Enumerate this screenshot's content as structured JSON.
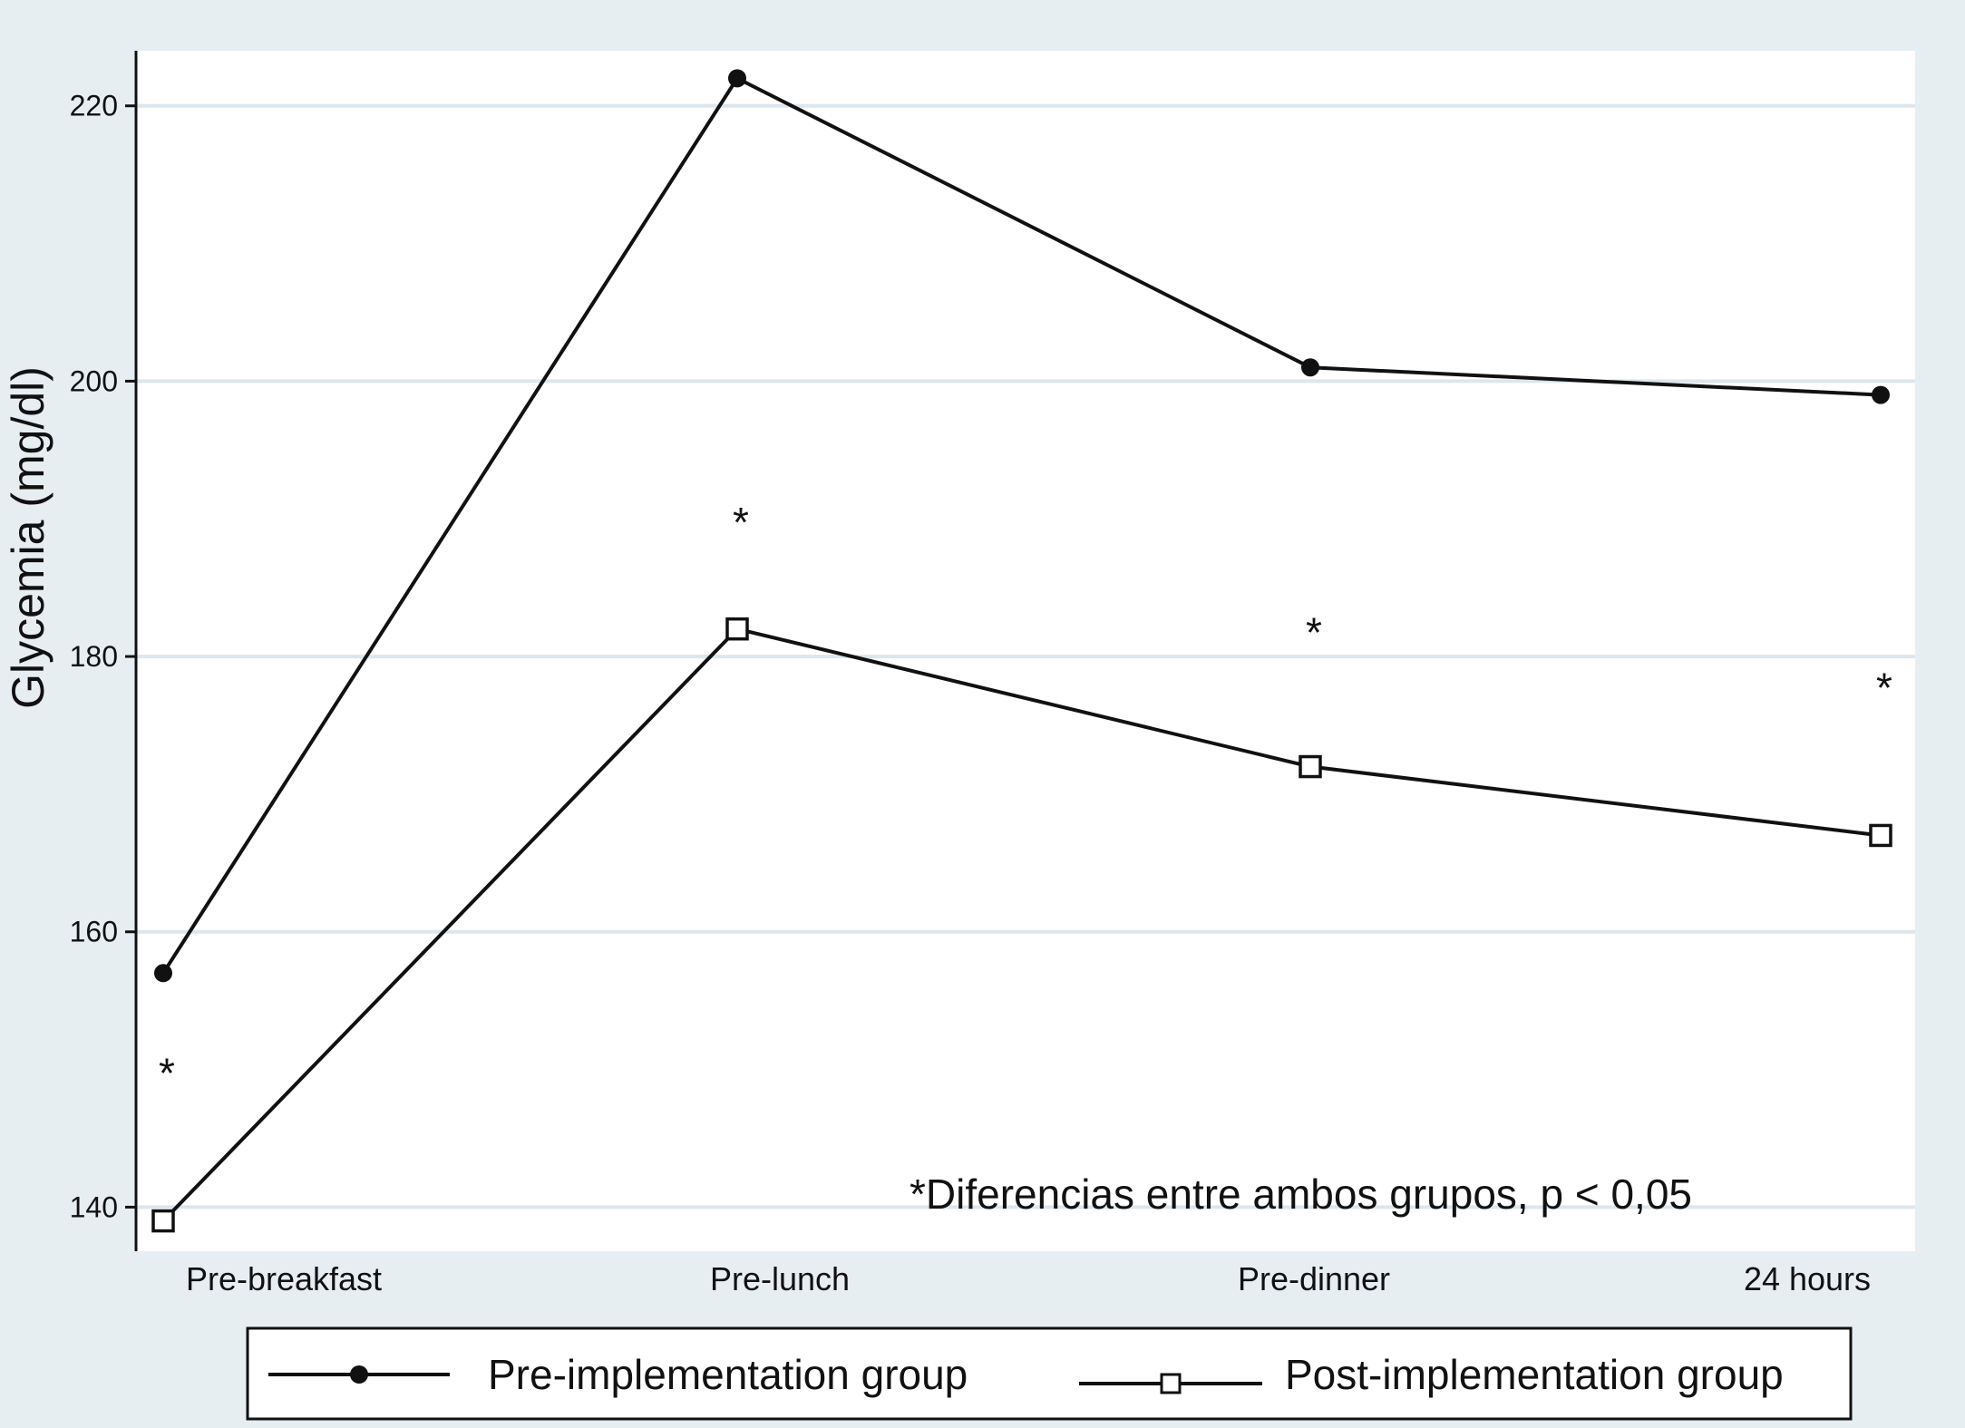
{
  "chart_data": {
    "type": "line",
    "categories": [
      "Pre-breakfast",
      "Pre-lunch",
      "Pre-dinner",
      "24 hours"
    ],
    "series": [
      {
        "name": "Pre-implementation group",
        "marker": "filled-circle",
        "values": [
          157,
          222,
          201,
          199
        ]
      },
      {
        "name": "Post-implementation group",
        "marker": "hollow-square",
        "values": [
          139,
          182,
          172,
          167
        ]
      }
    ],
    "ylabel": "Glycemia (mg/dl)",
    "xlabel": "",
    "yticks": [
      140,
      160,
      180,
      200,
      220
    ],
    "ylim": [
      136.8,
      224
    ],
    "grid": true,
    "legend_position": "bottom",
    "significance": {
      "marker": "*",
      "values": [
        150,
        190,
        182,
        178
      ],
      "note": "*Diferencias entre ambos grupos, p < 0,05"
    },
    "colors": {
      "plot_background": "#ffffff",
      "page_background": "#e7eef2",
      "gridline": "#dde6ec",
      "line": "#111111"
    }
  }
}
